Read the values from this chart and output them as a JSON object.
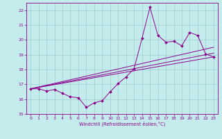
{
  "xlabel": "Windchill (Refroidissement éolien,°C)",
  "xlim": [
    -0.5,
    23.5
  ],
  "ylim": [
    15,
    22.5
  ],
  "xticks": [
    0,
    1,
    2,
    3,
    4,
    5,
    6,
    7,
    8,
    9,
    10,
    11,
    12,
    13,
    14,
    15,
    16,
    17,
    18,
    19,
    20,
    21,
    22,
    23
  ],
  "yticks": [
    15,
    16,
    17,
    18,
    19,
    20,
    21,
    22
  ],
  "background_color": "#c5eced",
  "grid_color": "#9ecdd0",
  "line_color": "#8b008b",
  "lines_no_marker": [
    {
      "x": [
        0,
        23
      ],
      "y": [
        16.7,
        18.85
      ]
    },
    {
      "x": [
        0,
        23
      ],
      "y": [
        16.7,
        19.1
      ]
    },
    {
      "x": [
        0,
        23
      ],
      "y": [
        16.7,
        19.5
      ]
    }
  ],
  "line_with_marker": {
    "x": [
      0,
      1,
      2,
      3,
      4,
      5,
      6,
      7,
      8,
      9,
      10,
      11,
      12,
      13,
      14,
      15,
      16,
      17,
      18,
      19,
      20,
      21,
      22,
      23
    ],
    "y": [
      16.7,
      16.7,
      16.55,
      16.65,
      16.4,
      16.15,
      16.1,
      15.45,
      15.75,
      15.9,
      16.5,
      17.05,
      17.5,
      18.05,
      20.1,
      22.2,
      20.3,
      19.85,
      19.9,
      19.6,
      20.5,
      20.3,
      19.05,
      18.85
    ]
  }
}
